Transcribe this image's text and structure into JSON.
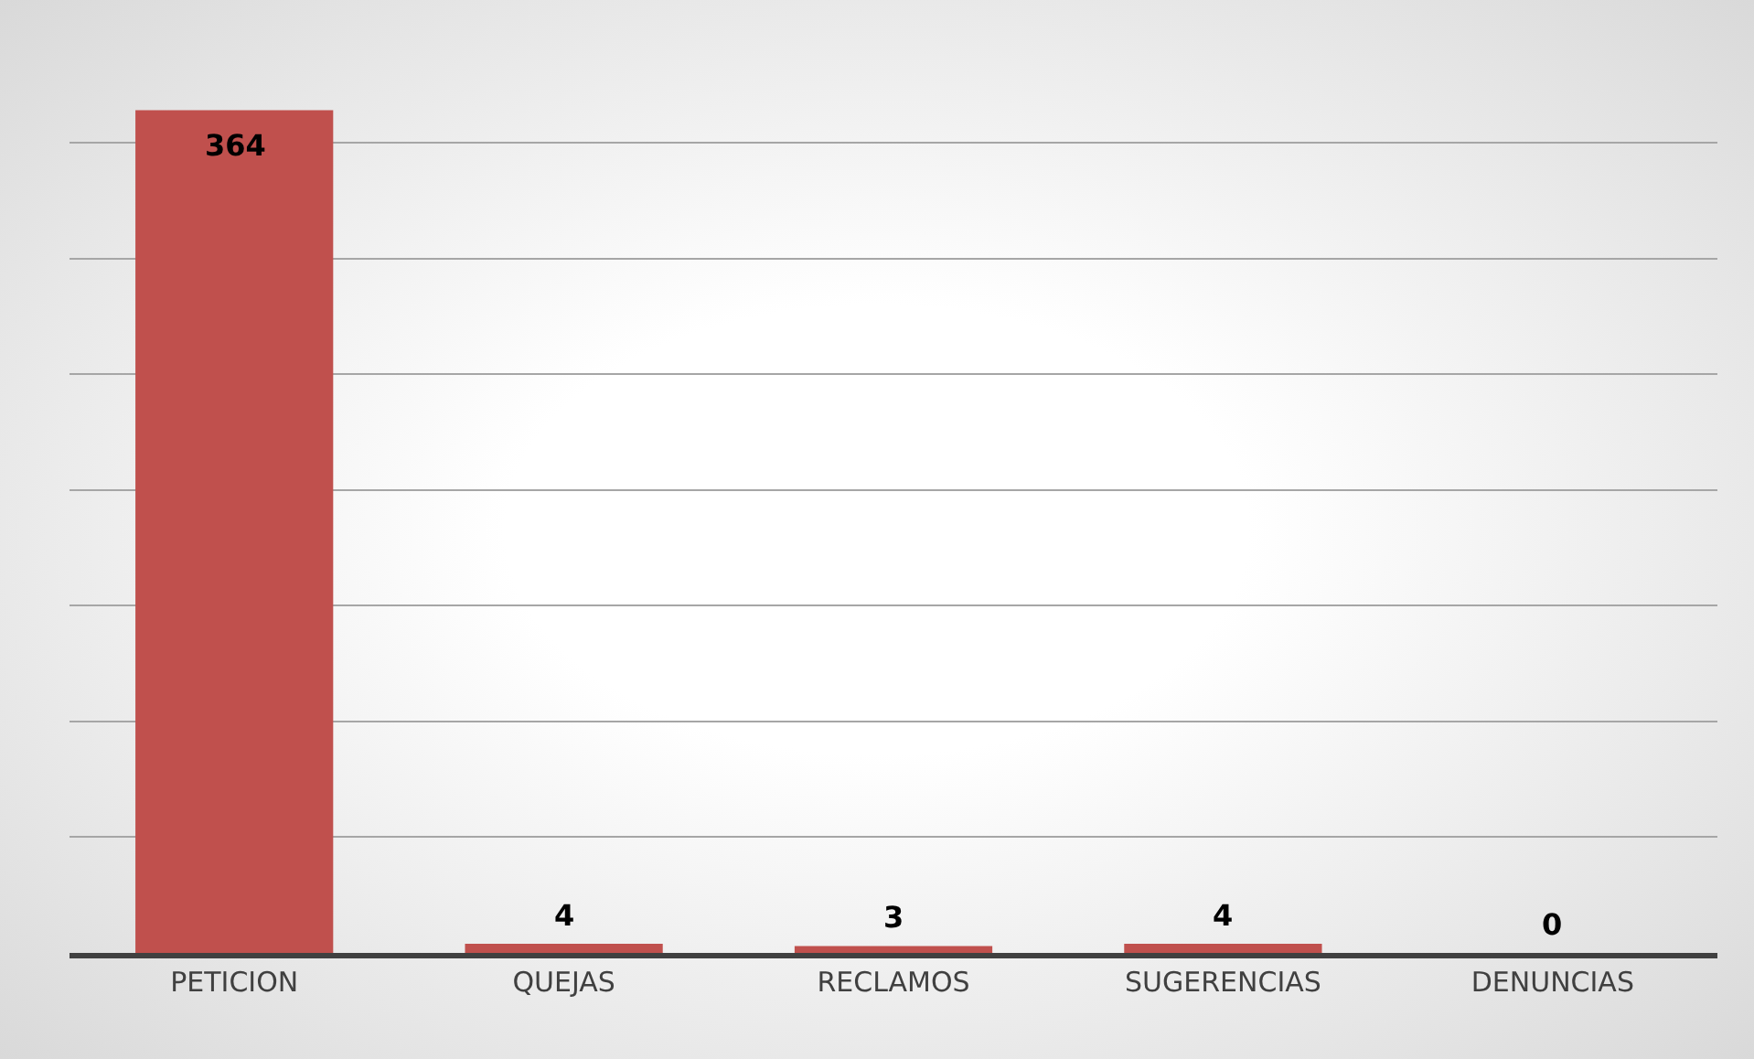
{
  "chart_data": {
    "type": "bar",
    "categories": [
      "PETICION",
      "QUEJAS",
      "RECLAMOS",
      "SUGERENCIAS",
      "DENUNCIAS"
    ],
    "values": [
      364,
      4,
      3,
      4,
      0
    ],
    "color": "#c0504d",
    "data_labels": true,
    "grid": "y",
    "tick_labels": "x"
  }
}
